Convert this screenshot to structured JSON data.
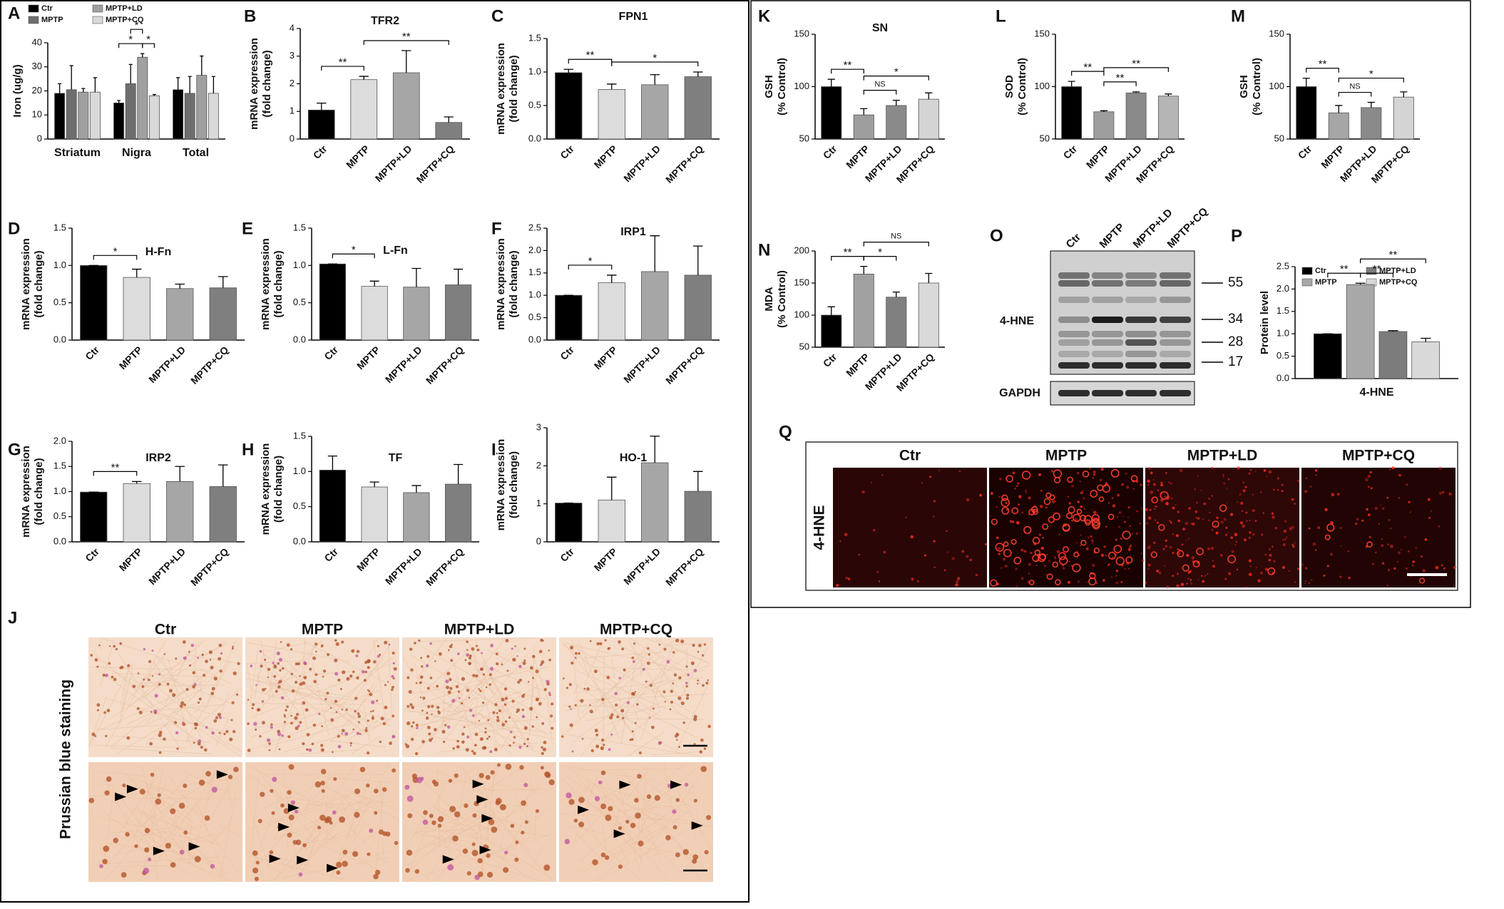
{
  "chart_data": [
    {
      "type": "bar",
      "letter": "A",
      "ylabel": [
        "Iron (ug/g)"
      ],
      "categories": [
        "Striatum",
        "Nigra",
        "Total"
      ],
      "series": [
        {
          "name": "Ctr",
          "color": "#000000",
          "values": [
            19,
            15,
            20.5
          ],
          "errors": [
            4,
            1,
            5
          ]
        },
        {
          "name": "MPTP",
          "color": "#6e6e6e",
          "values": [
            20.5,
            23,
            19
          ],
          "errors": [
            10,
            8,
            7
          ]
        },
        {
          "name": "MPTP+LD",
          "color": "#a0a0a0",
          "values": [
            19.5,
            34,
            26.5
          ],
          "errors": [
            1.5,
            1.5,
            8
          ]
        },
        {
          "name": "MPTP+CQ",
          "color": "#d9d9d9",
          "values": [
            19.5,
            18,
            19
          ],
          "errors": [
            6,
            0.5,
            7
          ]
        }
      ],
      "ylim": [
        0,
        40
      ],
      "yticks": [
        0,
        10,
        20,
        30,
        40
      ],
      "annotations": [
        {
          "label": "*",
          "pair": [
            4,
            6
          ]
        },
        {
          "label": "*",
          "pair": [
            5,
            6
          ]
        },
        {
          "label": "*",
          "pair": [
            6,
            7
          ]
        }
      ]
    },
    {
      "type": "bar",
      "letter": "B",
      "title": "TFR2",
      "ylabel": [
        "mRNA expression",
        "(fold change)"
      ],
      "categories": [
        "Ctr",
        "MPTP",
        "MPTP+LD",
        "MPTP+CQ"
      ],
      "values": [
        1.05,
        2.15,
        2.4,
        0.6
      ],
      "errors": [
        0.25,
        0.12,
        0.8,
        0.2
      ],
      "colors": [
        "#000000",
        "#dcdcdc",
        "#a6a6a6",
        "#7f7f7f"
      ],
      "ylim": [
        0,
        4
      ],
      "yticks": [
        0,
        1,
        2,
        3,
        4
      ],
      "annotations": [
        {
          "label": "**",
          "pair": [
            0,
            1
          ]
        },
        {
          "label": "**",
          "pair": [
            1,
            3
          ]
        }
      ]
    },
    {
      "type": "bar",
      "letter": "C",
      "title": "FPN1",
      "ylabel": [
        "mRNA expression",
        "(fold change)"
      ],
      "categories": [
        "Ctr",
        "MPTP",
        "MPTP+LD",
        "MPTP+CQ"
      ],
      "values": [
        0.99,
        0.74,
        0.81,
        0.93
      ],
      "errors": [
        0.05,
        0.08,
        0.15,
        0.07
      ],
      "colors": [
        "#000000",
        "#dcdcdc",
        "#a6a6a6",
        "#7f7f7f"
      ],
      "ylim": [
        0,
        1.5
      ],
      "yticks": [
        {
          "value": 0,
          "label": "0.0"
        },
        0.5,
        {
          "value": 1,
          "label": "1.0"
        },
        1.5
      ],
      "annotations": [
        {
          "label": "**",
          "pair": [
            0,
            1
          ]
        },
        {
          "label": "*",
          "pair": [
            1,
            3
          ]
        }
      ]
    },
    {
      "type": "bar",
      "letter": "D",
      "title": "H-Fn",
      "ylabel": [
        "mRNA expression",
        "(fold change)"
      ],
      "categories": [
        "Ctr",
        "MPTP",
        "MPTP+LD",
        "MPTP+CQ"
      ],
      "values": [
        1.0,
        0.84,
        0.69,
        0.7
      ],
      "errors": [
        0,
        0.11,
        0.06,
        0.15
      ],
      "colors": [
        "#000000",
        "#dcdcdc",
        "#a6a6a6",
        "#7f7f7f"
      ],
      "ylim": [
        0,
        1.5
      ],
      "yticks": [
        {
          "value": 0,
          "label": "0.0"
        },
        0.5,
        {
          "value": 1,
          "label": "1.0"
        },
        1.5
      ],
      "annotations": [
        {
          "label": "*",
          "pair": [
            0,
            1
          ]
        }
      ]
    },
    {
      "type": "bar",
      "letter": "E",
      "title": "L-Fn",
      "ylabel": [
        "mRNA expression",
        "(fold change)"
      ],
      "categories": [
        "Ctr",
        "MPTP",
        "MPTP+LD",
        "MPTP+CQ"
      ],
      "values": [
        1.02,
        0.72,
        0.71,
        0.74
      ],
      "errors": [
        0,
        0.07,
        0.25,
        0.21
      ],
      "colors": [
        "#000000",
        "#dcdcdc",
        "#a6a6a6",
        "#7f7f7f"
      ],
      "ylim": [
        0,
        1.5
      ],
      "yticks": [
        {
          "value": 0,
          "label": "0.0"
        },
        0.5,
        {
          "value": 1,
          "label": "1.0"
        },
        1.5
      ],
      "annotations": [
        {
          "label": "*",
          "pair": [
            0,
            1
          ]
        }
      ]
    },
    {
      "type": "bar",
      "letter": "F",
      "title": "IRP1",
      "ylabel": [
        "mRNA expression",
        "(fold change)"
      ],
      "categories": [
        "Ctr",
        "MPTP",
        "MPTP+LD",
        "MPTP+CQ"
      ],
      "values": [
        1.0,
        1.28,
        1.53,
        1.45
      ],
      "errors": [
        0,
        0.17,
        0.8,
        0.65
      ],
      "colors": [
        "#000000",
        "#dcdcdc",
        "#a6a6a6",
        "#7f7f7f"
      ],
      "ylim": [
        0,
        2.5
      ],
      "yticks": [
        {
          "value": 0,
          "label": "0.0"
        },
        0.5,
        {
          "value": 1,
          "label": "1.0"
        },
        1.5,
        {
          "value": 2,
          "label": "2.0"
        },
        2.5
      ],
      "annotations": [
        {
          "label": "*",
          "pair": [
            0,
            1
          ]
        }
      ]
    },
    {
      "type": "bar",
      "letter": "G",
      "title": "IRP2",
      "ylabel": [
        "mRNA expression",
        "(fold change)"
      ],
      "categories": [
        "Ctr",
        "MPTP",
        "MPTP+LD",
        "MPTP+CQ"
      ],
      "values": [
        0.99,
        1.16,
        1.2,
        1.1
      ],
      "errors": [
        0,
        0.04,
        0.3,
        0.43
      ],
      "colors": [
        "#000000",
        "#dcdcdc",
        "#a6a6a6",
        "#7f7f7f"
      ],
      "ylim": [
        0,
        2
      ],
      "yticks": [
        {
          "value": 0,
          "label": "0.0"
        },
        0.5,
        {
          "value": 1,
          "label": "1.0"
        },
        1.5,
        {
          "value": 2,
          "label": "2.0"
        }
      ],
      "annotations": [
        {
          "label": "**",
          "pair": [
            0,
            1
          ]
        }
      ]
    },
    {
      "type": "bar",
      "letter": "H",
      "title": "TF",
      "ylabel": [
        "mRNA expression",
        "(fold change)"
      ],
      "categories": [
        "Ctr",
        "MPTP",
        "MPTP+LD",
        "MPTP+CQ"
      ],
      "values": [
        1.02,
        0.78,
        0.7,
        0.82
      ],
      "errors": [
        0.2,
        0.07,
        0.1,
        0.28
      ],
      "colors": [
        "#000000",
        "#dcdcdc",
        "#a6a6a6",
        "#7f7f7f"
      ],
      "ylim": [
        0,
        1.5
      ],
      "yticks": [
        {
          "value": 0,
          "label": "0.0"
        },
        0.5,
        {
          "value": 1,
          "label": "1.0"
        },
        1.5
      ],
      "annotations": []
    },
    {
      "type": "bar",
      "letter": "I",
      "title": "HO-1",
      "ylabel": [
        "mRNA expression",
        "(fold change)"
      ],
      "categories": [
        "Ctr",
        "MPTP",
        "MPTP+LD",
        "MPTP+CQ"
      ],
      "values": [
        1.02,
        1.1,
        2.08,
        1.33
      ],
      "errors": [
        0,
        0.6,
        0.7,
        0.52
      ],
      "colors": [
        "#000000",
        "#dcdcdc",
        "#a6a6a6",
        "#7f7f7f"
      ],
      "ylim": [
        0,
        3
      ],
      "yticks": [
        0,
        1,
        2,
        3
      ],
      "annotations": []
    },
    {
      "type": "bar",
      "letter": "K",
      "title": "SN",
      "ylabel": [
        "GSH",
        "(% Control)"
      ],
      "categories": [
        "Ctr",
        "MPTP",
        "MPTP+LD",
        "MPTP+CQ"
      ],
      "values": [
        100,
        73,
        82,
        88
      ],
      "errors": [
        7,
        6,
        5,
        6
      ],
      "colors": [
        "#000000",
        "#9e9e9e",
        "#8a8a8a",
        "#d4d4d4"
      ],
      "ylim": [
        50,
        150
      ],
      "yticks": [
        50,
        100,
        150
      ],
      "annotations": [
        {
          "label": "**",
          "pair": [
            0,
            1
          ]
        },
        {
          "label": "NS",
          "pair": [
            1,
            2
          ]
        },
        {
          "label": "*",
          "pair": [
            1,
            3
          ]
        }
      ]
    },
    {
      "type": "bar",
      "letter": "L",
      "ylabel": [
        "SOD",
        "(% Control)"
      ],
      "categories": [
        "Ctr",
        "MPTP",
        "MPTP+LD",
        "MPTP+CQ"
      ],
      "values": [
        100,
        76,
        94,
        91
      ],
      "errors": [
        5,
        1,
        1,
        2
      ],
      "colors": [
        "#000000",
        "#9e9e9e",
        "#8a8a8a",
        "#b5b5b5"
      ],
      "ylim": [
        50,
        150
      ],
      "yticks": [
        50,
        100,
        150
      ],
      "annotations": [
        {
          "label": "**",
          "pair": [
            0,
            1
          ]
        },
        {
          "label": "**",
          "pair": [
            1,
            2
          ]
        },
        {
          "label": "**",
          "pair": [
            1,
            3
          ]
        }
      ]
    },
    {
      "type": "bar",
      "letter": "M",
      "ylabel": [
        "GSH",
        "(% Control)"
      ],
      "categories": [
        "Ctr",
        "MPTP",
        "MPTP+LD",
        "MPTP+CQ"
      ],
      "values": [
        100,
        75,
        80,
        90
      ],
      "errors": [
        8,
        7,
        5,
        5
      ],
      "colors": [
        "#000000",
        "#a6a6a6",
        "#8a8a8a",
        "#d4d4d4"
      ],
      "ylim": [
        50,
        150
      ],
      "yticks": [
        50,
        100,
        150
      ],
      "annotations": [
        {
          "label": "**",
          "pair": [
            0,
            1
          ]
        },
        {
          "label": "NS",
          "pair": [
            1,
            2
          ]
        },
        {
          "label": "*",
          "pair": [
            1,
            3
          ]
        }
      ]
    },
    {
      "type": "bar",
      "letter": "N",
      "ylabel": [
        "MDA",
        "(% Control)"
      ],
      "categories": [
        "Ctr",
        "MPTP",
        "MPTP+LD",
        "MPTP+CQ"
      ],
      "values": [
        100,
        164,
        128,
        150
      ],
      "errors": [
        13,
        12,
        8,
        15
      ],
      "colors": [
        "#000000",
        "#a0a0a0",
        "#808080",
        "#d9d9d9"
      ],
      "ylim": [
        50,
        200
      ],
      "yticks": [
        50,
        100,
        150,
        200
      ],
      "annotations": [
        {
          "label": "**",
          "pair": [
            0,
            1
          ]
        },
        {
          "label": "*",
          "pair": [
            1,
            2
          ]
        },
        {
          "label": "NS",
          "pair": [
            1,
            3
          ]
        }
      ]
    },
    {
      "type": "bar",
      "letter": "P",
      "ylabel": [
        "Protein level"
      ],
      "categories": [
        "4-HNE"
      ],
      "series": [
        {
          "name": "Ctr",
          "color": "#000000",
          "values": [
            1.0
          ],
          "errors": [
            0
          ]
        },
        {
          "name": "MPTP",
          "color": "#a8a8a8",
          "values": [
            2.1
          ],
          "errors": [
            0.03
          ]
        },
        {
          "name": "MPTP+LD",
          "color": "#7c7c7c",
          "values": [
            1.05
          ],
          "errors": [
            0.02
          ]
        },
        {
          "name": "MPTP+CQ",
          "color": "#d9d9d9",
          "values": [
            0.82
          ],
          "errors": [
            0.08
          ]
        }
      ],
      "ylim": [
        0,
        2.5
      ],
      "yticks": [
        {
          "value": 0,
          "label": "0.0"
        },
        0.5,
        {
          "value": 1,
          "label": "1.0"
        },
        1.5,
        {
          "value": 2,
          "label": "2.0"
        },
        2.5
      ],
      "annotations": [
        {
          "label": "**",
          "pair": [
            0,
            1
          ]
        },
        {
          "label": "**",
          "pair": [
            1,
            2
          ]
        },
        {
          "label": "**",
          "pair": [
            1,
            3
          ]
        }
      ]
    }
  ],
  "images": {
    "J": {
      "letter": "J",
      "columns": [
        "Ctr",
        "MPTP",
        "MPTP+LD",
        "MPTP+CQ"
      ],
      "row_label": "Prussian blue staining"
    },
    "O": {
      "letter": "O",
      "lanes": [
        "Ctr",
        "MPTP",
        "MPTP+LD",
        "MPTP+CQ"
      ],
      "label": "4-HNE",
      "markers": [
        55,
        34,
        28,
        17
      ],
      "loading": "GAPDH"
    },
    "Q": {
      "letter": "Q",
      "columns": [
        "Ctr",
        "MPTP",
        "MPTP+LD",
        "MPTP+CQ"
      ],
      "row_label": "4-HNE"
    }
  }
}
